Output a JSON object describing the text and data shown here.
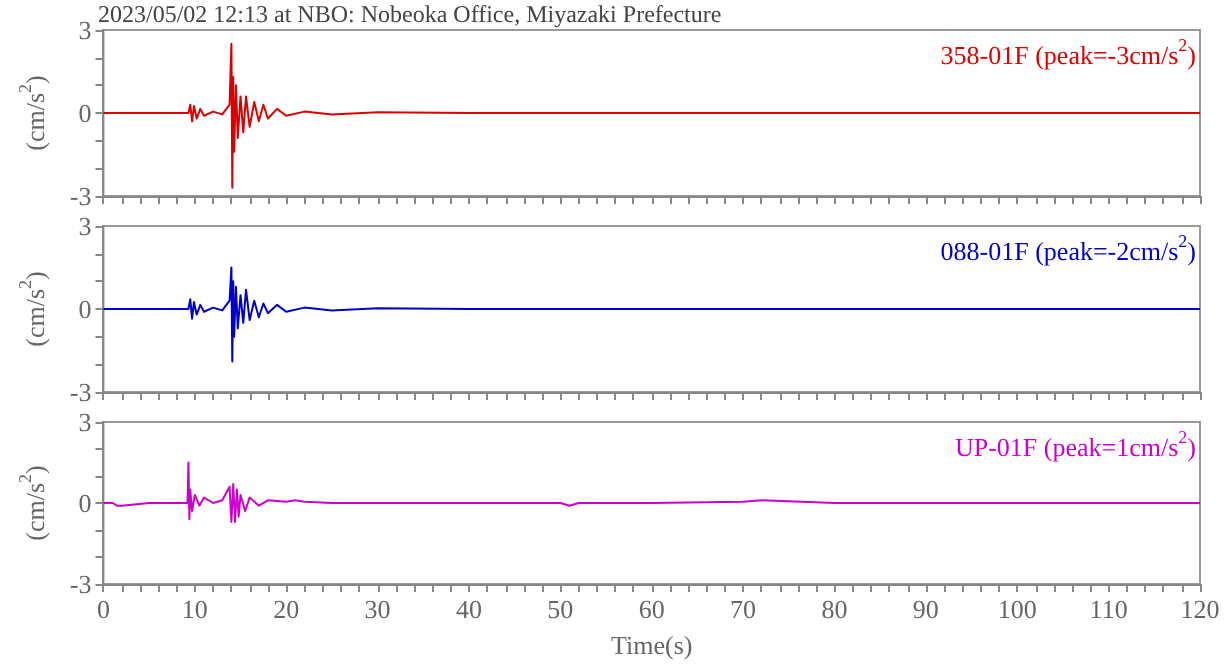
{
  "chart_data": [
    {
      "type": "line",
      "title": "2023/05/02 12:13 at NBO: Nobeoka Office, Miyazaki Prefecture",
      "ylabel": "(cm/s$^{2}$)",
      "xlim": [
        0,
        120
      ],
      "ylim": [
        -3,
        3
      ],
      "tick_labels": "y",
      "xticks": [
        0,
        {
          "value": 2,
          "label": null
        },
        {
          "value": 4,
          "label": null
        },
        {
          "value": 6,
          "label": null
        },
        {
          "value": 8,
          "label": null
        },
        10,
        {
          "value": 12,
          "label": null
        },
        {
          "value": 14,
          "label": null
        },
        {
          "value": 16,
          "label": null
        },
        {
          "value": 18,
          "label": null
        },
        20,
        {
          "value": 22,
          "label": null
        },
        {
          "value": 24,
          "label": null
        },
        {
          "value": 26,
          "label": null
        },
        {
          "value": 28,
          "label": null
        },
        30,
        {
          "value": 32,
          "label": null
        },
        {
          "value": 34,
          "label": null
        },
        {
          "value": 36,
          "label": null
        },
        {
          "value": 38,
          "label": null
        },
        40,
        {
          "value": 42,
          "label": null
        },
        {
          "value": 44,
          "label": null
        },
        {
          "value": 46,
          "label": null
        },
        {
          "value": 48,
          "label": null
        },
        50,
        {
          "value": 52,
          "label": null
        },
        {
          "value": 54,
          "label": null
        },
        {
          "value": 56,
          "label": null
        },
        {
          "value": 58,
          "label": null
        },
        60,
        {
          "value": 62,
          "label": null
        },
        {
          "value": 64,
          "label": null
        },
        {
          "value": 66,
          "label": null
        },
        {
          "value": 68,
          "label": null
        },
        70,
        {
          "value": 72,
          "label": null
        },
        {
          "value": 74,
          "label": null
        },
        {
          "value": 76,
          "label": null
        },
        {
          "value": 78,
          "label": null
        },
        80,
        {
          "value": 82,
          "label": null
        },
        {
          "value": 84,
          "label": null
        },
        {
          "value": 86,
          "label": null
        },
        {
          "value": 88,
          "label": null
        },
        90,
        {
          "value": 92,
          "label": null
        },
        {
          "value": 94,
          "label": null
        },
        {
          "value": 96,
          "label": null
        },
        {
          "value": 98,
          "label": null
        },
        100,
        {
          "value": 102,
          "label": null
        },
        {
          "value": 104,
          "label": null
        },
        {
          "value": 106,
          "label": null
        },
        {
          "value": 108,
          "label": null
        },
        110,
        {
          "value": 112,
          "label": null
        },
        {
          "value": 114,
          "label": null
        },
        {
          "value": 116,
          "label": null
        },
        {
          "value": 118,
          "label": null
        },
        120
      ],
      "yticks": [
        -3,
        {
          "value": -2,
          "label": null
        },
        {
          "value": -1,
          "label": null
        },
        0,
        {
          "value": 1,
          "label": null
        },
        {
          "value": 2,
          "label": null
        },
        3
      ],
      "series": [
        {
          "name": "358-01F (peak=-3cm/s$^{2}$)",
          "color": "#dd0000",
          "x": [
            0,
            5,
            9.3,
            9.5,
            9.7,
            9.9,
            10.2,
            10.6,
            11,
            12,
            13,
            13.8,
            14.0,
            14.1,
            14.2,
            14.3,
            14.5,
            14.7,
            15,
            15.3,
            15.6,
            16,
            16.5,
            17,
            17.5,
            18,
            19,
            20,
            22,
            25,
            30,
            40,
            50,
            60,
            70,
            80,
            90,
            100,
            110,
            120
          ],
          "values": [
            0,
            0,
            0,
            0.3,
            -0.3,
            0.25,
            -0.2,
            0.15,
            -0.1,
            0.05,
            -0.05,
            0.3,
            2.5,
            -2.7,
            1.3,
            -1.4,
            1,
            -0.9,
            0.6,
            -0.7,
            0.6,
            -0.5,
            0.4,
            -0.3,
            0.3,
            -0.2,
            0.15,
            -0.1,
            0.05,
            -0.05,
            0.03,
            0,
            0,
            0,
            0,
            0,
            0,
            0,
            0,
            0
          ]
        }
      ]
    },
    {
      "type": "line",
      "ylabel": "(cm/s$^{2}$)",
      "xlim": [
        0,
        120
      ],
      "ylim": [
        -3,
        3
      ],
      "tick_labels": "y",
      "xticks": [
        0,
        {
          "value": 2,
          "label": null
        },
        {
          "value": 4,
          "label": null
        },
        {
          "value": 6,
          "label": null
        },
        {
          "value": 8,
          "label": null
        },
        10,
        {
          "value": 12,
          "label": null
        },
        {
          "value": 14,
          "label": null
        },
        {
          "value": 16,
          "label": null
        },
        {
          "value": 18,
          "label": null
        },
        20,
        {
          "value": 22,
          "label": null
        },
        {
          "value": 24,
          "label": null
        },
        {
          "value": 26,
          "label": null
        },
        {
          "value": 28,
          "label": null
        },
        30,
        {
          "value": 32,
          "label": null
        },
        {
          "value": 34,
          "label": null
        },
        {
          "value": 36,
          "label": null
        },
        {
          "value": 38,
          "label": null
        },
        40,
        {
          "value": 42,
          "label": null
        },
        {
          "value": 44,
          "label": null
        },
        {
          "value": 46,
          "label": null
        },
        {
          "value": 48,
          "label": null
        },
        50,
        {
          "value": 52,
          "label": null
        },
        {
          "value": 54,
          "label": null
        },
        {
          "value": 56,
          "label": null
        },
        {
          "value": 58,
          "label": null
        },
        60,
        {
          "value": 62,
          "label": null
        },
        {
          "value": 64,
          "label": null
        },
        {
          "value": 66,
          "label": null
        },
        {
          "value": 68,
          "label": null
        },
        70,
        {
          "value": 72,
          "label": null
        },
        {
          "value": 74,
          "label": null
        },
        {
          "value": 76,
          "label": null
        },
        {
          "value": 78,
          "label": null
        },
        80,
        {
          "value": 82,
          "label": null
        },
        {
          "value": 84,
          "label": null
        },
        {
          "value": 86,
          "label": null
        },
        {
          "value": 88,
          "label": null
        },
        90,
        {
          "value": 92,
          "label": null
        },
        {
          "value": 94,
          "label": null
        },
        {
          "value": 96,
          "label": null
        },
        {
          "value": 98,
          "label": null
        },
        100,
        {
          "value": 102,
          "label": null
        },
        {
          "value": 104,
          "label": null
        },
        {
          "value": 106,
          "label": null
        },
        {
          "value": 108,
          "label": null
        },
        110,
        {
          "value": 112,
          "label": null
        },
        {
          "value": 114,
          "label": null
        },
        {
          "value": 116,
          "label": null
        },
        {
          "value": 118,
          "label": null
        },
        120
      ],
      "yticks": [
        -3,
        {
          "value": -2,
          "label": null
        },
        {
          "value": -1,
          "label": null
        },
        0,
        {
          "value": 1,
          "label": null
        },
        {
          "value": 2,
          "label": null
        },
        3
      ],
      "series": [
        {
          "name": "088-01F (peak=-2cm/s$^{2}$)",
          "color": "#0000cc",
          "x": [
            0,
            5,
            9.3,
            9.5,
            9.7,
            9.9,
            10.2,
            10.6,
            11,
            12,
            13,
            13.8,
            14.0,
            14.1,
            14.2,
            14.3,
            14.5,
            14.7,
            15,
            15.3,
            15.6,
            16,
            16.5,
            17,
            17.5,
            18,
            19,
            20,
            22,
            25,
            30,
            40,
            50,
            60,
            70,
            80,
            90,
            100,
            110,
            120
          ],
          "values": [
            0,
            0,
            0,
            0.35,
            -0.35,
            0.25,
            -0.2,
            0.15,
            -0.1,
            0.05,
            -0.05,
            0.3,
            1.5,
            -1.9,
            1,
            -1,
            0.8,
            -0.7,
            0.5,
            -0.5,
            0.7,
            -0.4,
            0.3,
            -0.3,
            0.2,
            -0.15,
            0.15,
            -0.1,
            0.05,
            -0.05,
            0.03,
            0,
            0,
            0,
            0,
            0,
            0,
            0,
            0,
            0
          ]
        }
      ]
    },
    {
      "type": "line",
      "ylabel": "(cm/s$^{2}$)",
      "xlabel": "Time(s)",
      "xlim": [
        0,
        120
      ],
      "ylim": [
        -3,
        3
      ],
      "xticks": [
        0,
        {
          "value": 2,
          "label": null
        },
        {
          "value": 4,
          "label": null
        },
        {
          "value": 6,
          "label": null
        },
        {
          "value": 8,
          "label": null
        },
        10,
        {
          "value": 12,
          "label": null
        },
        {
          "value": 14,
          "label": null
        },
        {
          "value": 16,
          "label": null
        },
        {
          "value": 18,
          "label": null
        },
        20,
        {
          "value": 22,
          "label": null
        },
        {
          "value": 24,
          "label": null
        },
        {
          "value": 26,
          "label": null
        },
        {
          "value": 28,
          "label": null
        },
        30,
        {
          "value": 32,
          "label": null
        },
        {
          "value": 34,
          "label": null
        },
        {
          "value": 36,
          "label": null
        },
        {
          "value": 38,
          "label": null
        },
        40,
        {
          "value": 42,
          "label": null
        },
        {
          "value": 44,
          "label": null
        },
        {
          "value": 46,
          "label": null
        },
        {
          "value": 48,
          "label": null
        },
        50,
        {
          "value": 52,
          "label": null
        },
        {
          "value": 54,
          "label": null
        },
        {
          "value": 56,
          "label": null
        },
        {
          "value": 58,
          "label": null
        },
        60,
        {
          "value": 62,
          "label": null
        },
        {
          "value": 64,
          "label": null
        },
        {
          "value": 66,
          "label": null
        },
        {
          "value": 68,
          "label": null
        },
        70,
        {
          "value": 72,
          "label": null
        },
        {
          "value": 74,
          "label": null
        },
        {
          "value": 76,
          "label": null
        },
        {
          "value": 78,
          "label": null
        },
        80,
        {
          "value": 82,
          "label": null
        },
        {
          "value": 84,
          "label": null
        },
        {
          "value": 86,
          "label": null
        },
        {
          "value": 88,
          "label": null
        },
        90,
        {
          "value": 92,
          "label": null
        },
        {
          "value": 94,
          "label": null
        },
        {
          "value": 96,
          "label": null
        },
        {
          "value": 98,
          "label": null
        },
        100,
        {
          "value": 102,
          "label": null
        },
        {
          "value": 104,
          "label": null
        },
        {
          "value": 106,
          "label": null
        },
        {
          "value": 108,
          "label": null
        },
        110,
        {
          "value": 112,
          "label": null
        },
        {
          "value": 114,
          "label": null
        },
        {
          "value": 116,
          "label": null
        },
        {
          "value": 118,
          "label": null
        },
        120
      ],
      "yticks": [
        -3,
        {
          "value": -2,
          "label": null
        },
        {
          "value": -1,
          "label": null
        },
        0,
        {
          "value": 1,
          "label": null
        },
        {
          "value": 2,
          "label": null
        },
        3
      ],
      "series": [
        {
          "name": "UP-01F (peak=1cm/s$^{2}$)",
          "color": "#cc00cc",
          "x": [
            0,
            1,
            1.5,
            2,
            5,
            9,
            9.2,
            9.3,
            9.4,
            9.5,
            9.7,
            10,
            10.5,
            11,
            12,
            13,
            13.8,
            14.0,
            14.2,
            14.4,
            14.6,
            14.8,
            15,
            15.5,
            16,
            17,
            18,
            20,
            21,
            22,
            25,
            30,
            40,
            50,
            51,
            52,
            60,
            70,
            72,
            80,
            90,
            100,
            110,
            120
          ],
          "values": [
            0,
            0,
            -0.1,
            -0.1,
            0,
            0,
            0,
            1.5,
            -0.6,
            0.5,
            -0.3,
            0.3,
            -0.1,
            0.2,
            0,
            0.1,
            0.6,
            -0.7,
            0.7,
            -0.7,
            0.5,
            -0.5,
            0.3,
            -0.3,
            0.2,
            -0.1,
            0.1,
            0.05,
            0.1,
            0.05,
            0,
            0,
            0,
            0,
            -0.1,
            0,
            0,
            0.05,
            0.1,
            0,
            0,
            0,
            0,
            0
          ]
        }
      ]
    }
  ]
}
